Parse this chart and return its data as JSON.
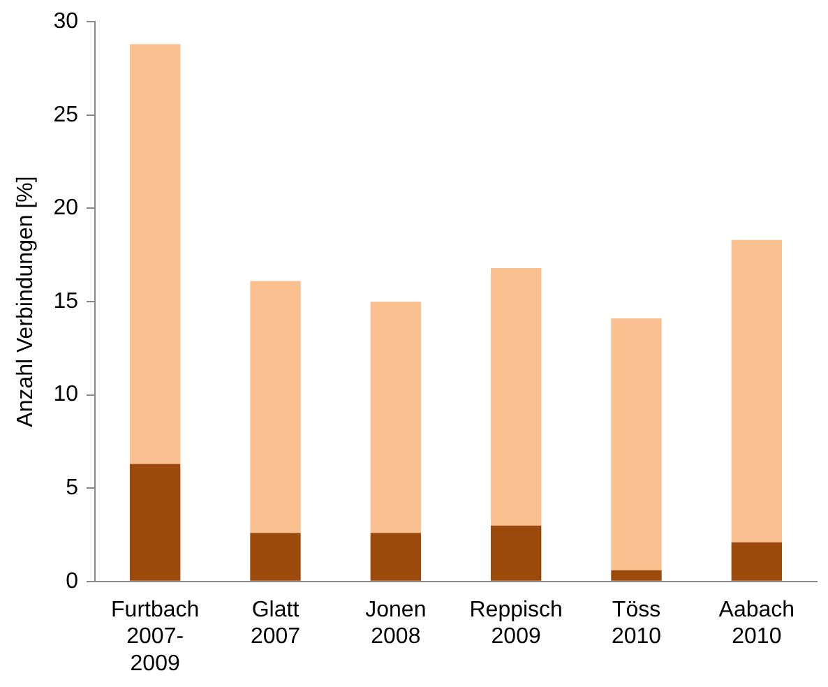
{
  "chart_data": {
    "type": "bar",
    "ylabel": "Anzahl Verbindungen [%]",
    "categories": [
      "Furtbach\n2007-\n2009",
      "Glatt\n2007",
      "Jonen\n2008",
      "Reppisch\n2009",
      "Töss\n2010",
      "Aabach\n2010"
    ],
    "stacked": true,
    "series": [
      {
        "color": "#9c4a0c",
        "values": [
          6.3,
          2.6,
          2.6,
          3.0,
          0.6,
          2.1
        ]
      },
      {
        "color": "#fac090",
        "values": [
          22.5,
          13.5,
          12.4,
          13.8,
          13.5,
          16.2
        ]
      }
    ],
    "ylim": [
      0,
      30
    ],
    "yticks": [
      0,
      5,
      10,
      15,
      20,
      25,
      30
    ],
    "grid": false,
    "legend": false
  }
}
